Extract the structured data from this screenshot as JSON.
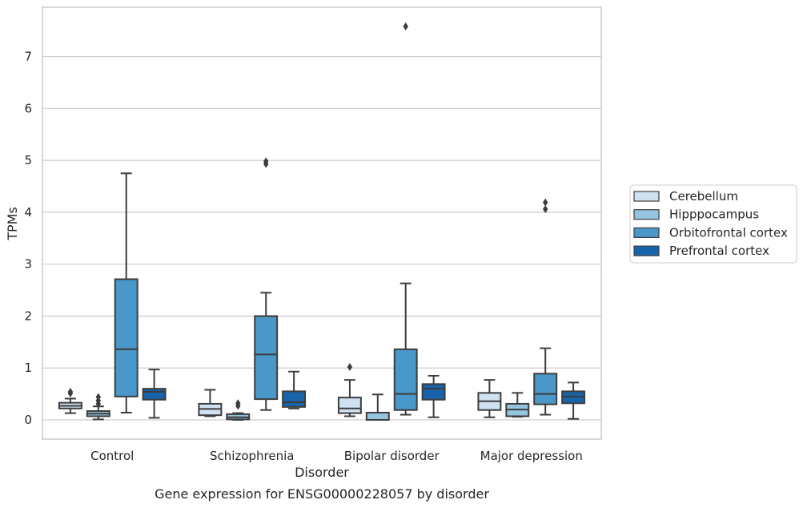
{
  "chart_data": {
    "type": "box",
    "title": "",
    "caption": "Gene expression for ENSG00000228057 by disorder",
    "xlabel": "Disorder",
    "ylabel": "TPMs",
    "ylim": [
      -0.37,
      7.95
    ],
    "yticks": [
      0,
      1,
      2,
      3,
      4,
      5,
      6,
      7
    ],
    "grid": "horizontal",
    "legend_position": "right-outside",
    "categories": [
      "Control",
      "Schizophrenia",
      "Bipolar disorder",
      "Major depression"
    ],
    "series": [
      {
        "name": "Cerebellum",
        "color": "#d0e1f2",
        "boxes": [
          {
            "whislo": 0.13,
            "q1": 0.22,
            "med": 0.27,
            "q3": 0.33,
            "whishi": 0.41,
            "fliers": [
              0.51,
              0.54
            ]
          },
          {
            "whislo": 0.07,
            "q1": 0.09,
            "med": 0.21,
            "q3": 0.31,
            "whishi": 0.58,
            "fliers": []
          },
          {
            "whislo": 0.07,
            "q1": 0.13,
            "med": 0.22,
            "q3": 0.43,
            "whishi": 0.77,
            "fliers": [
              1.02
            ]
          },
          {
            "whislo": 0.05,
            "q1": 0.19,
            "med": 0.36,
            "q3": 0.52,
            "whishi": 0.77,
            "fliers": []
          }
        ]
      },
      {
        "name": "Hipppocampus",
        "color": "#94c4df",
        "boxes": [
          {
            "whislo": 0.01,
            "q1": 0.07,
            "med": 0.12,
            "q3": 0.17,
            "whishi": 0.26,
            "fliers": [
              0.31,
              0.37,
              0.44
            ]
          },
          {
            "whislo": 0.0,
            "q1": 0.01,
            "med": 0.05,
            "q3": 0.11,
            "whishi": 0.13,
            "fliers": [
              0.27,
              0.32
            ]
          },
          {
            "whislo": 0.0,
            "q1": 0.0,
            "med": 0.0,
            "q3": 0.14,
            "whishi": 0.49,
            "fliers": []
          },
          {
            "whislo": 0.06,
            "q1": 0.07,
            "med": 0.2,
            "q3": 0.31,
            "whishi": 0.52,
            "fliers": []
          }
        ]
      },
      {
        "name": "Orbitofrontal cortex",
        "color": "#4a98c9",
        "boxes": [
          {
            "whislo": 0.14,
            "q1": 0.45,
            "med": 1.36,
            "q3": 2.71,
            "whishi": 4.75,
            "fliers": []
          },
          {
            "whislo": 0.19,
            "q1": 0.4,
            "med": 1.26,
            "q3": 2.0,
            "whishi": 2.45,
            "fliers": [
              4.93,
              4.98
            ]
          },
          {
            "whislo": 0.1,
            "q1": 0.19,
            "med": 0.5,
            "q3": 1.36,
            "whishi": 2.63,
            "fliers": [
              7.58
            ]
          },
          {
            "whislo": 0.1,
            "q1": 0.3,
            "med": 0.5,
            "q3": 0.89,
            "whishi": 1.38,
            "fliers": [
              4.06,
              4.19
            ]
          }
        ]
      },
      {
        "name": "Prefrontal cortex",
        "color": "#1764ab",
        "boxes": [
          {
            "whislo": 0.04,
            "q1": 0.39,
            "med": 0.54,
            "q3": 0.6,
            "whishi": 0.97,
            "fliers": []
          },
          {
            "whislo": 0.22,
            "q1": 0.25,
            "med": 0.34,
            "q3": 0.55,
            "whishi": 0.93,
            "fliers": []
          },
          {
            "whislo": 0.05,
            "q1": 0.39,
            "med": 0.6,
            "q3": 0.69,
            "whishi": 0.85,
            "fliers": []
          },
          {
            "whislo": 0.02,
            "q1": 0.32,
            "med": 0.45,
            "q3": 0.55,
            "whishi": 0.72,
            "fliers": []
          }
        ]
      }
    ]
  }
}
